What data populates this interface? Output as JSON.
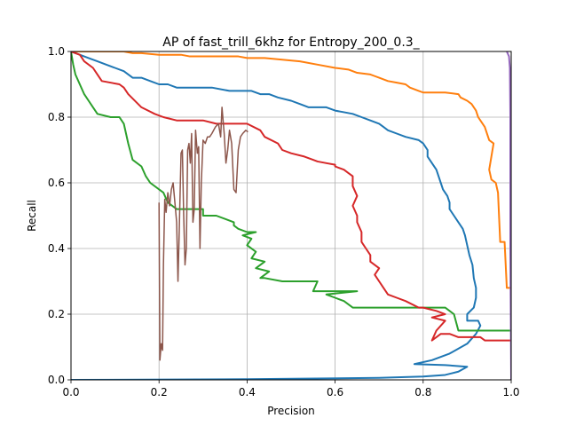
{
  "chart_data": {
    "type": "line",
    "title": "AP of fast_trill_6khz for Entropy_200_0.3_",
    "xlabel": "Precision",
    "ylabel": "Recall",
    "xlim": [
      0.0,
      1.0
    ],
    "ylim": [
      0.0,
      1.0
    ],
    "grid": true,
    "x_ticks": [
      "0.0",
      "0.2",
      "0.4",
      "0.6",
      "0.8",
      "1.0"
    ],
    "y_ticks": [
      "0.0",
      "0.2",
      "0.4",
      "0.6",
      "0.8",
      "1.0"
    ],
    "series": [
      {
        "color": "#1f77b4",
        "width": 2,
        "points": [
          [
            0.0,
            0.0
          ],
          [
            0.4,
            0.002
          ],
          [
            0.7,
            0.006
          ],
          [
            0.8,
            0.01
          ],
          [
            0.85,
            0.015
          ],
          [
            0.88,
            0.025
          ],
          [
            0.9,
            0.04
          ],
          [
            0.85,
            0.045
          ],
          [
            0.78,
            0.048
          ],
          [
            0.82,
            0.06
          ],
          [
            0.86,
            0.08
          ],
          [
            0.9,
            0.11
          ],
          [
            0.92,
            0.14
          ],
          [
            0.93,
            0.165
          ],
          [
            0.925,
            0.18
          ],
          [
            0.9,
            0.18
          ],
          [
            0.9,
            0.2
          ],
          [
            0.915,
            0.22
          ],
          [
            0.92,
            0.25
          ],
          [
            0.92,
            0.28
          ],
          [
            0.915,
            0.31
          ],
          [
            0.912,
            0.35
          ],
          [
            0.905,
            0.38
          ],
          [
            0.9,
            0.41
          ],
          [
            0.895,
            0.44
          ],
          [
            0.89,
            0.46
          ],
          [
            0.88,
            0.48
          ],
          [
            0.87,
            0.5
          ],
          [
            0.86,
            0.52
          ],
          [
            0.86,
            0.54
          ],
          [
            0.855,
            0.56
          ],
          [
            0.845,
            0.58
          ],
          [
            0.84,
            0.6
          ],
          [
            0.835,
            0.62
          ],
          [
            0.83,
            0.64
          ],
          [
            0.82,
            0.66
          ],
          [
            0.81,
            0.68
          ],
          [
            0.81,
            0.7
          ],
          [
            0.8,
            0.72
          ],
          [
            0.79,
            0.73
          ],
          [
            0.76,
            0.74
          ],
          [
            0.74,
            0.75
          ],
          [
            0.72,
            0.76
          ],
          [
            0.71,
            0.77
          ],
          [
            0.7,
            0.78
          ],
          [
            0.68,
            0.79
          ],
          [
            0.66,
            0.8
          ],
          [
            0.64,
            0.81
          ],
          [
            0.62,
            0.815
          ],
          [
            0.6,
            0.82
          ],
          [
            0.58,
            0.83
          ],
          [
            0.54,
            0.83
          ],
          [
            0.52,
            0.84
          ],
          [
            0.5,
            0.85
          ],
          [
            0.47,
            0.86
          ],
          [
            0.45,
            0.87
          ],
          [
            0.43,
            0.87
          ],
          [
            0.41,
            0.88
          ],
          [
            0.36,
            0.88
          ],
          [
            0.32,
            0.89
          ],
          [
            0.24,
            0.89
          ],
          [
            0.22,
            0.9
          ],
          [
            0.2,
            0.9
          ],
          [
            0.18,
            0.91
          ],
          [
            0.16,
            0.92
          ],
          [
            0.14,
            0.92
          ],
          [
            0.12,
            0.94
          ],
          [
            0.1,
            0.95
          ],
          [
            0.08,
            0.96
          ],
          [
            0.06,
            0.97
          ],
          [
            0.04,
            0.98
          ],
          [
            0.02,
            0.99
          ],
          [
            0.0,
            1.0
          ]
        ]
      },
      {
        "color": "#ff7f0e",
        "width": 2,
        "points": [
          [
            1.0,
            0.28
          ],
          [
            0.99,
            0.28
          ],
          [
            0.985,
            0.42
          ],
          [
            0.975,
            0.42
          ],
          [
            0.97,
            0.57
          ],
          [
            0.965,
            0.6
          ],
          [
            0.955,
            0.61
          ],
          [
            0.95,
            0.64
          ],
          [
            0.96,
            0.72
          ],
          [
            0.95,
            0.73
          ],
          [
            0.945,
            0.75
          ],
          [
            0.94,
            0.77
          ],
          [
            0.93,
            0.79
          ],
          [
            0.925,
            0.8
          ],
          [
            0.92,
            0.82
          ],
          [
            0.91,
            0.84
          ],
          [
            0.9,
            0.85
          ],
          [
            0.885,
            0.86
          ],
          [
            0.88,
            0.87
          ],
          [
            0.85,
            0.875
          ],
          [
            0.8,
            0.875
          ],
          [
            0.79,
            0.88
          ],
          [
            0.77,
            0.89
          ],
          [
            0.76,
            0.9
          ],
          [
            0.74,
            0.905
          ],
          [
            0.72,
            0.91
          ],
          [
            0.7,
            0.92
          ],
          [
            0.69,
            0.925
          ],
          [
            0.68,
            0.93
          ],
          [
            0.65,
            0.935
          ],
          [
            0.63,
            0.945
          ],
          [
            0.6,
            0.95
          ],
          [
            0.56,
            0.96
          ],
          [
            0.52,
            0.97
          ],
          [
            0.48,
            0.975
          ],
          [
            0.44,
            0.98
          ],
          [
            0.4,
            0.98
          ],
          [
            0.38,
            0.985
          ],
          [
            0.27,
            0.985
          ],
          [
            0.25,
            0.99
          ],
          [
            0.2,
            0.99
          ],
          [
            0.16,
            0.995
          ],
          [
            0.14,
            0.995
          ],
          [
            0.12,
            1.0
          ],
          [
            0.0,
            1.0
          ]
        ]
      },
      {
        "color": "#2ca02c",
        "width": 2,
        "points": [
          [
            1.0,
            0.15
          ],
          [
            0.88,
            0.15
          ],
          [
            0.87,
            0.2
          ],
          [
            0.85,
            0.22
          ],
          [
            0.72,
            0.22
          ],
          [
            0.7,
            0.22
          ],
          [
            0.64,
            0.22
          ],
          [
            0.62,
            0.24
          ],
          [
            0.6,
            0.25
          ],
          [
            0.58,
            0.26
          ],
          [
            0.65,
            0.27
          ],
          [
            0.55,
            0.27
          ],
          [
            0.56,
            0.3
          ],
          [
            0.48,
            0.3
          ],
          [
            0.44,
            0.31
          ],
          [
            0.43,
            0.31
          ],
          [
            0.45,
            0.33
          ],
          [
            0.42,
            0.34
          ],
          [
            0.44,
            0.36
          ],
          [
            0.41,
            0.37
          ],
          [
            0.42,
            0.39
          ],
          [
            0.4,
            0.41
          ],
          [
            0.41,
            0.43
          ],
          [
            0.39,
            0.44
          ],
          [
            0.42,
            0.45
          ],
          [
            0.4,
            0.45
          ],
          [
            0.38,
            0.46
          ],
          [
            0.37,
            0.47
          ],
          [
            0.37,
            0.48
          ],
          [
            0.33,
            0.5
          ],
          [
            0.3,
            0.5
          ],
          [
            0.3,
            0.52
          ],
          [
            0.24,
            0.52
          ],
          [
            0.22,
            0.54
          ],
          [
            0.21,
            0.57
          ],
          [
            0.18,
            0.6
          ],
          [
            0.17,
            0.62
          ],
          [
            0.16,
            0.65
          ],
          [
            0.14,
            0.67
          ],
          [
            0.13,
            0.72
          ],
          [
            0.12,
            0.78
          ],
          [
            0.11,
            0.8
          ],
          [
            0.09,
            0.8
          ],
          [
            0.06,
            0.81
          ],
          [
            0.05,
            0.83
          ],
          [
            0.04,
            0.85
          ],
          [
            0.03,
            0.87
          ],
          [
            0.02,
            0.9
          ],
          [
            0.01,
            0.93
          ],
          [
            0.005,
            0.96
          ],
          [
            0.0,
            1.0
          ]
        ]
      },
      {
        "color": "#d62728",
        "width": 2,
        "points": [
          [
            1.0,
            0.12
          ],
          [
            0.94,
            0.12
          ],
          [
            0.93,
            0.13
          ],
          [
            0.88,
            0.13
          ],
          [
            0.86,
            0.14
          ],
          [
            0.84,
            0.14
          ],
          [
            0.83,
            0.13
          ],
          [
            0.82,
            0.12
          ],
          [
            0.83,
            0.15
          ],
          [
            0.85,
            0.18
          ],
          [
            0.82,
            0.19
          ],
          [
            0.85,
            0.2
          ],
          [
            0.83,
            0.21
          ],
          [
            0.8,
            0.22
          ],
          [
            0.79,
            0.22
          ],
          [
            0.76,
            0.24
          ],
          [
            0.74,
            0.25
          ],
          [
            0.72,
            0.26
          ],
          [
            0.71,
            0.28
          ],
          [
            0.7,
            0.3
          ],
          [
            0.69,
            0.32
          ],
          [
            0.7,
            0.34
          ],
          [
            0.68,
            0.36
          ],
          [
            0.68,
            0.38
          ],
          [
            0.67,
            0.4
          ],
          [
            0.66,
            0.42
          ],
          [
            0.66,
            0.45
          ],
          [
            0.65,
            0.48
          ],
          [
            0.65,
            0.5
          ],
          [
            0.64,
            0.53
          ],
          [
            0.65,
            0.56
          ],
          [
            0.64,
            0.59
          ],
          [
            0.64,
            0.6
          ],
          [
            0.64,
            0.62
          ],
          [
            0.63,
            0.63
          ],
          [
            0.62,
            0.64
          ],
          [
            0.6,
            0.65
          ],
          [
            0.6,
            0.655
          ],
          [
            0.58,
            0.66
          ],
          [
            0.56,
            0.665
          ],
          [
            0.55,
            0.67
          ],
          [
            0.53,
            0.68
          ],
          [
            0.5,
            0.69
          ],
          [
            0.48,
            0.7
          ],
          [
            0.47,
            0.72
          ],
          [
            0.44,
            0.74
          ],
          [
            0.43,
            0.76
          ],
          [
            0.4,
            0.78
          ],
          [
            0.33,
            0.78
          ],
          [
            0.3,
            0.79
          ],
          [
            0.24,
            0.79
          ],
          [
            0.21,
            0.8
          ],
          [
            0.19,
            0.81
          ],
          [
            0.16,
            0.83
          ],
          [
            0.13,
            0.87
          ],
          [
            0.12,
            0.89
          ],
          [
            0.11,
            0.9
          ],
          [
            0.07,
            0.91
          ],
          [
            0.06,
            0.93
          ],
          [
            0.05,
            0.95
          ],
          [
            0.03,
            0.97
          ],
          [
            0.02,
            0.99
          ],
          [
            0.0,
            1.0
          ]
        ]
      },
      {
        "color": "#8c564b",
        "width": 1.5,
        "points": [
          [
            0.2,
            0.54
          ],
          [
            0.202,
            0.06
          ],
          [
            0.205,
            0.11
          ],
          [
            0.208,
            0.09
          ],
          [
            0.21,
            0.35
          ],
          [
            0.213,
            0.55
          ],
          [
            0.216,
            0.51
          ],
          [
            0.22,
            0.57
          ],
          [
            0.224,
            0.53
          ],
          [
            0.228,
            0.58
          ],
          [
            0.232,
            0.6
          ],
          [
            0.236,
            0.54
          ],
          [
            0.24,
            0.48
          ],
          [
            0.243,
            0.3
          ],
          [
            0.246,
            0.46
          ],
          [
            0.25,
            0.69
          ],
          [
            0.253,
            0.7
          ],
          [
            0.256,
            0.5
          ],
          [
            0.259,
            0.35
          ],
          [
            0.262,
            0.4
          ],
          [
            0.265,
            0.7
          ],
          [
            0.268,
            0.72
          ],
          [
            0.271,
            0.66
          ],
          [
            0.274,
            0.75
          ],
          [
            0.277,
            0.48
          ],
          [
            0.28,
            0.52
          ],
          [
            0.283,
            0.76
          ],
          [
            0.287,
            0.69
          ],
          [
            0.29,
            0.71
          ],
          [
            0.293,
            0.4
          ],
          [
            0.296,
            0.6
          ],
          [
            0.3,
            0.73
          ],
          [
            0.305,
            0.72
          ],
          [
            0.31,
            0.74
          ],
          [
            0.315,
            0.74
          ],
          [
            0.32,
            0.75
          ],
          [
            0.328,
            0.77
          ],
          [
            0.335,
            0.78
          ],
          [
            0.34,
            0.74
          ],
          [
            0.343,
            0.83
          ],
          [
            0.348,
            0.75
          ],
          [
            0.352,
            0.66
          ],
          [
            0.356,
            0.7
          ],
          [
            0.36,
            0.76
          ],
          [
            0.365,
            0.72
          ],
          [
            0.37,
            0.58
          ],
          [
            0.375,
            0.57
          ],
          [
            0.38,
            0.7
          ],
          [
            0.385,
            0.74
          ],
          [
            0.39,
            0.75
          ],
          [
            0.397,
            0.76
          ],
          [
            0.402,
            0.755
          ]
        ]
      },
      {
        "color": "#9467bd",
        "width": 2,
        "points": [
          [
            1.0,
            0.0
          ],
          [
            0.998,
            0.4
          ],
          [
            0.998,
            0.8
          ],
          [
            0.997,
            0.95
          ],
          [
            0.995,
            0.985
          ],
          [
            0.99,
            1.0
          ]
        ]
      }
    ]
  }
}
